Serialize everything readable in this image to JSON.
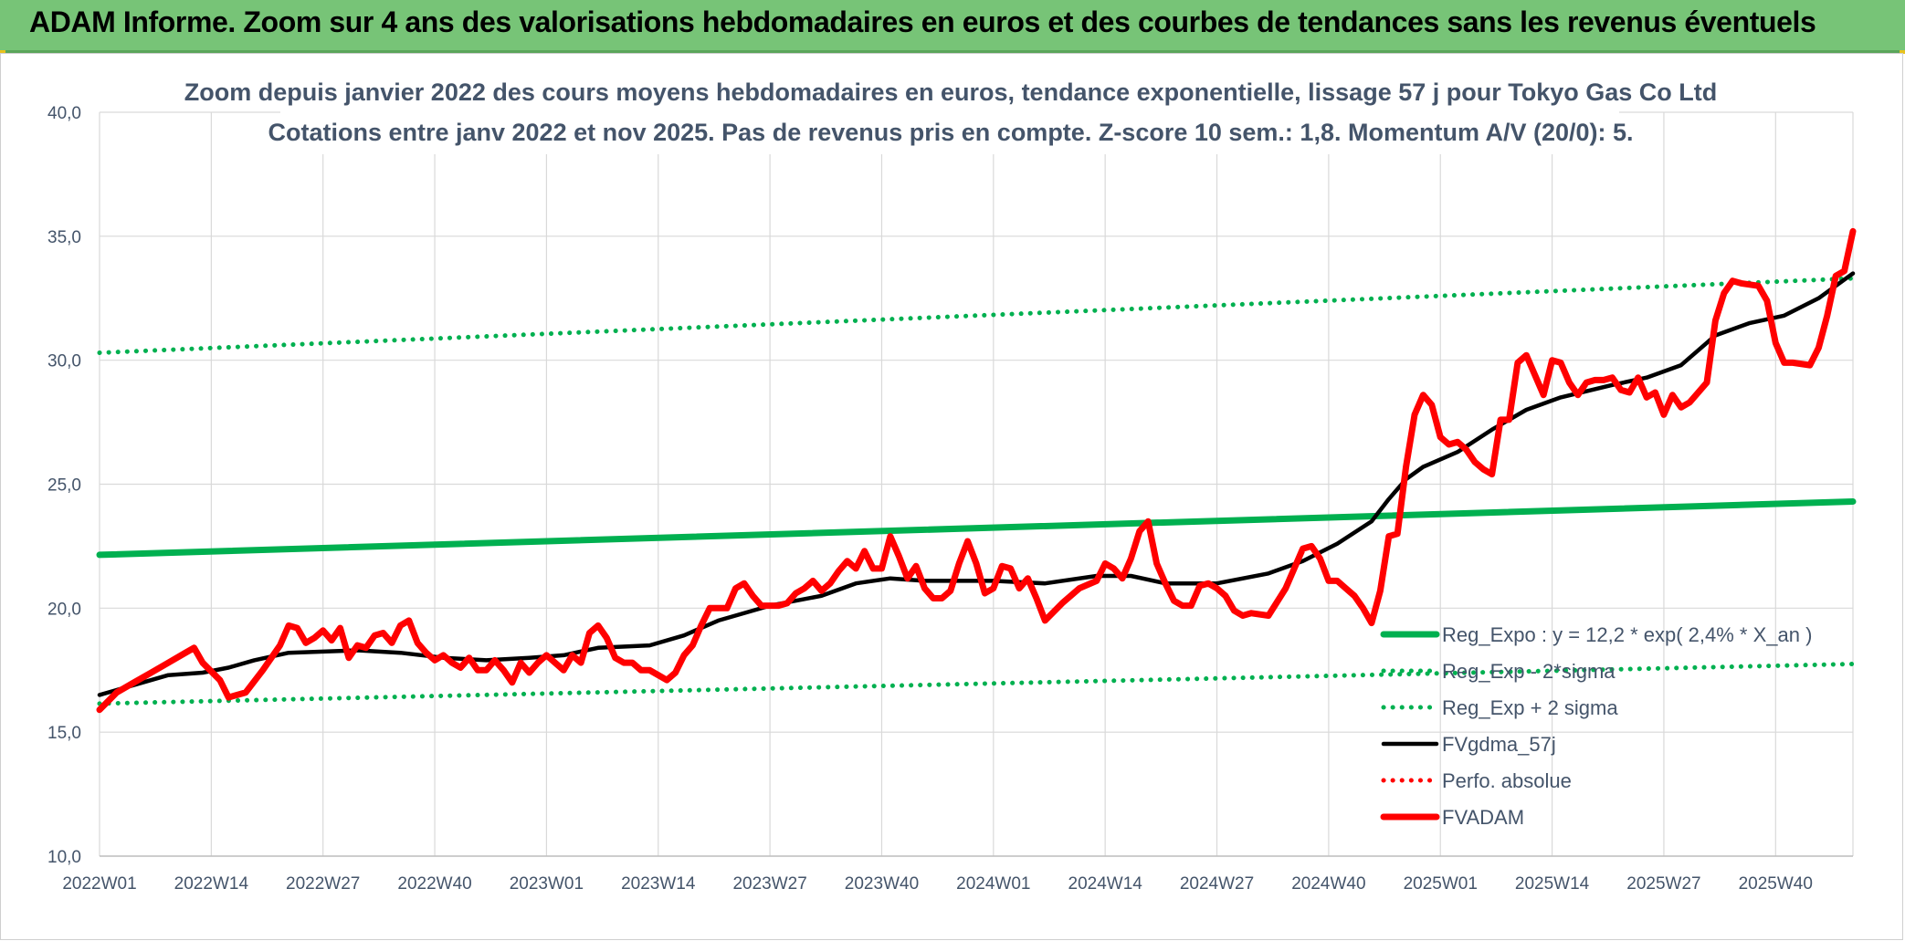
{
  "banner": {
    "title": "ADAM Informe. Zoom sur 4 ans des valorisations hebdomadaires en euros et des courbes de tendances sans les revenus éventuels"
  },
  "chart_data": {
    "type": "line",
    "title": "Zoom depuis janvier 2022 des cours moyens hebdomadaires en euros, tendance exponentielle, lissage 57 j pour Tokyo Gas Co Ltd",
    "subtitle": "Cotations entre janv 2022 et nov 2025. Pas de revenus pris en compte. Z-score 10 sem.: 1,8. Momentum A/V (20/0): 5.",
    "xlabel": "",
    "ylabel": "",
    "ylim": [
      10,
      40
    ],
    "yticks": [
      "10,0",
      "15,0",
      "20,0",
      "25,0",
      "30,0",
      "35,0",
      "40,0"
    ],
    "x_range_weeks": [
      0,
      204
    ],
    "xticks": [
      {
        "label": "2022W01",
        "week": 0
      },
      {
        "label": "2022W14",
        "week": 13
      },
      {
        "label": "2022W27",
        "week": 26
      },
      {
        "label": "2022W40",
        "week": 39
      },
      {
        "label": "2023W01",
        "week": 52
      },
      {
        "label": "2023W14",
        "week": 65
      },
      {
        "label": "2023W27",
        "week": 78
      },
      {
        "label": "2023W40",
        "week": 91
      },
      {
        "label": "2024W01",
        "week": 104
      },
      {
        "label": "2024W14",
        "week": 117
      },
      {
        "label": "2024W27",
        "week": 130
      },
      {
        "label": "2024W40",
        "week": 143
      },
      {
        "label": "2025W01",
        "week": 156
      },
      {
        "label": "2025W14",
        "week": 169
      },
      {
        "label": "2025W27",
        "week": 182
      },
      {
        "label": "2025W40",
        "week": 195
      }
    ],
    "grid": true,
    "legend_position": "bottom-right",
    "series": [
      {
        "name": "Reg_Expo : y = 12,2 * exp( 2,4% *  X_an )",
        "style": "solid-thick",
        "color": "#00b050",
        "points": [
          [
            0,
            22.15
          ],
          [
            204,
            24.3
          ]
        ]
      },
      {
        "name": "Reg_Exp - 2*sigma",
        "style": "dotted",
        "color": "#00b050",
        "points": [
          [
            0,
            16.15
          ],
          [
            204,
            17.75
          ]
        ]
      },
      {
        "name": "Reg_Exp + 2 sigma",
        "style": "dotted",
        "color": "#00b050",
        "points": [
          [
            0,
            30.3
          ],
          [
            204,
            33.3
          ]
        ]
      },
      {
        "name": "FVgdma_57j",
        "style": "solid",
        "color": "#000000",
        "points": [
          [
            0,
            16.5
          ],
          [
            4,
            16.9
          ],
          [
            8,
            17.3
          ],
          [
            12,
            17.4
          ],
          [
            15,
            17.6
          ],
          [
            18,
            17.9
          ],
          [
            22,
            18.2
          ],
          [
            30,
            18.3
          ],
          [
            35,
            18.2
          ],
          [
            40,
            18.0
          ],
          [
            45,
            17.9
          ],
          [
            50,
            18.0
          ],
          [
            54,
            18.1
          ],
          [
            58,
            18.4
          ],
          [
            64,
            18.5
          ],
          [
            68,
            18.9
          ],
          [
            72,
            19.5
          ],
          [
            78,
            20.1
          ],
          [
            84,
            20.5
          ],
          [
            88,
            21.0
          ],
          [
            92,
            21.2
          ],
          [
            96,
            21.1
          ],
          [
            104,
            21.1
          ],
          [
            110,
            21.0
          ],
          [
            116,
            21.3
          ],
          [
            120,
            21.3
          ],
          [
            124,
            21.0
          ],
          [
            130,
            21.0
          ],
          [
            136,
            21.4
          ],
          [
            140,
            21.9
          ],
          [
            144,
            22.6
          ],
          [
            148,
            23.5
          ],
          [
            150,
            24.4
          ],
          [
            152,
            25.2
          ],
          [
            154,
            25.7
          ],
          [
            158,
            26.3
          ],
          [
            162,
            27.2
          ],
          [
            166,
            28.0
          ],
          [
            170,
            28.5
          ],
          [
            176,
            29.0
          ],
          [
            180,
            29.3
          ],
          [
            184,
            29.8
          ],
          [
            188,
            31.0
          ],
          [
            192,
            31.5
          ],
          [
            196,
            31.8
          ],
          [
            200,
            32.5
          ],
          [
            204,
            33.5
          ]
        ]
      },
      {
        "name": "Perfo. absolue",
        "style": "dotted",
        "color": "#ff0000",
        "points": []
      },
      {
        "name": "FVADAM",
        "style": "solid-thick",
        "color": "#ff0000",
        "points": [
          [
            0,
            15.9
          ],
          [
            2,
            16.6
          ],
          [
            4,
            17.0
          ],
          [
            6,
            17.4
          ],
          [
            8,
            17.8
          ],
          [
            10,
            18.2
          ],
          [
            11,
            18.4
          ],
          [
            12,
            17.8
          ],
          [
            14,
            17.1
          ],
          [
            15,
            16.4
          ],
          [
            17,
            16.6
          ],
          [
            19,
            17.5
          ],
          [
            21,
            18.5
          ],
          [
            22,
            19.3
          ],
          [
            23,
            19.2
          ],
          [
            24,
            18.6
          ],
          [
            25,
            18.8
          ],
          [
            26,
            19.1
          ],
          [
            27,
            18.7
          ],
          [
            28,
            19.2
          ],
          [
            29,
            18.0
          ],
          [
            30,
            18.5
          ],
          [
            31,
            18.4
          ],
          [
            32,
            18.9
          ],
          [
            33,
            19.0
          ],
          [
            34,
            18.6
          ],
          [
            35,
            19.3
          ],
          [
            36,
            19.5
          ],
          [
            37,
            18.6
          ],
          [
            38,
            18.2
          ],
          [
            39,
            17.9
          ],
          [
            40,
            18.1
          ],
          [
            41,
            17.8
          ],
          [
            42,
            17.6
          ],
          [
            43,
            18.0
          ],
          [
            44,
            17.5
          ],
          [
            45,
            17.5
          ],
          [
            46,
            17.9
          ],
          [
            47,
            17.5
          ],
          [
            48,
            17.0
          ],
          [
            49,
            17.8
          ],
          [
            50,
            17.4
          ],
          [
            51,
            17.8
          ],
          [
            52,
            18.1
          ],
          [
            53,
            17.8
          ],
          [
            54,
            17.5
          ],
          [
            55,
            18.1
          ],
          [
            56,
            17.8
          ],
          [
            57,
            19.0
          ],
          [
            58,
            19.3
          ],
          [
            59,
            18.8
          ],
          [
            60,
            18.0
          ],
          [
            61,
            17.8
          ],
          [
            62,
            17.8
          ],
          [
            63,
            17.5
          ],
          [
            64,
            17.5
          ],
          [
            65,
            17.3
          ],
          [
            66,
            17.1
          ],
          [
            67,
            17.4
          ],
          [
            68,
            18.1
          ],
          [
            69,
            18.5
          ],
          [
            70,
            19.3
          ],
          [
            71,
            20.0
          ],
          [
            72,
            20.0
          ],
          [
            73,
            20.0
          ],
          [
            74,
            20.8
          ],
          [
            75,
            21.0
          ],
          [
            76,
            20.5
          ],
          [
            77,
            20.1
          ],
          [
            78,
            20.1
          ],
          [
            79,
            20.1
          ],
          [
            80,
            20.2
          ],
          [
            81,
            20.6
          ],
          [
            82,
            20.8
          ],
          [
            83,
            21.1
          ],
          [
            84,
            20.7
          ],
          [
            85,
            21.0
          ],
          [
            86,
            21.5
          ],
          [
            87,
            21.9
          ],
          [
            88,
            21.6
          ],
          [
            89,
            22.3
          ],
          [
            90,
            21.6
          ],
          [
            91,
            21.6
          ],
          [
            92,
            22.9
          ],
          [
            93,
            22.1
          ],
          [
            94,
            21.2
          ],
          [
            95,
            21.7
          ],
          [
            96,
            20.8
          ],
          [
            97,
            20.4
          ],
          [
            98,
            20.4
          ],
          [
            99,
            20.7
          ],
          [
            100,
            21.8
          ],
          [
            101,
            22.7
          ],
          [
            102,
            21.8
          ],
          [
            103,
            20.6
          ],
          [
            104,
            20.8
          ],
          [
            105,
            21.7
          ],
          [
            106,
            21.6
          ],
          [
            107,
            20.8
          ],
          [
            108,
            21.2
          ],
          [
            109,
            20.4
          ],
          [
            110,
            19.5
          ],
          [
            112,
            20.2
          ],
          [
            114,
            20.8
          ],
          [
            116,
            21.1
          ],
          [
            117,
            21.8
          ],
          [
            118,
            21.6
          ],
          [
            119,
            21.2
          ],
          [
            120,
            22.0
          ],
          [
            121,
            23.1
          ],
          [
            122,
            23.5
          ],
          [
            123,
            21.8
          ],
          [
            124,
            21.0
          ],
          [
            125,
            20.3
          ],
          [
            126,
            20.1
          ],
          [
            127,
            20.1
          ],
          [
            128,
            20.9
          ],
          [
            129,
            21.0
          ],
          [
            130,
            20.8
          ],
          [
            131,
            20.5
          ],
          [
            132,
            19.9
          ],
          [
            133,
            19.7
          ],
          [
            134,
            19.8
          ],
          [
            136,
            19.7
          ],
          [
            138,
            20.8
          ],
          [
            139,
            21.6
          ],
          [
            140,
            22.4
          ],
          [
            141,
            22.5
          ],
          [
            142,
            22.0
          ],
          [
            143,
            21.1
          ],
          [
            144,
            21.1
          ],
          [
            145,
            20.8
          ],
          [
            146,
            20.5
          ],
          [
            147,
            20.0
          ],
          [
            148,
            19.4
          ],
          [
            149,
            20.7
          ],
          [
            150,
            22.9
          ],
          [
            151,
            23.0
          ],
          [
            152,
            25.7
          ],
          [
            153,
            27.8
          ],
          [
            154,
            28.6
          ],
          [
            155,
            28.2
          ],
          [
            156,
            26.9
          ],
          [
            157,
            26.6
          ],
          [
            158,
            26.7
          ],
          [
            159,
            26.4
          ],
          [
            160,
            25.9
          ],
          [
            161,
            25.6
          ],
          [
            162,
            25.4
          ],
          [
            163,
            27.6
          ],
          [
            164,
            27.6
          ],
          [
            165,
            29.9
          ],
          [
            166,
            30.2
          ],
          [
            167,
            29.4
          ],
          [
            168,
            28.6
          ],
          [
            169,
            30.0
          ],
          [
            170,
            29.9
          ],
          [
            171,
            29.1
          ],
          [
            172,
            28.6
          ],
          [
            173,
            29.1
          ],
          [
            174,
            29.2
          ],
          [
            175,
            29.2
          ],
          [
            176,
            29.3
          ],
          [
            177,
            28.8
          ],
          [
            178,
            28.7
          ],
          [
            179,
            29.3
          ],
          [
            180,
            28.5
          ],
          [
            181,
            28.7
          ],
          [
            182,
            27.8
          ],
          [
            183,
            28.6
          ],
          [
            184,
            28.1
          ],
          [
            185,
            28.3
          ],
          [
            186,
            28.7
          ],
          [
            187,
            29.1
          ],
          [
            188,
            31.6
          ],
          [
            189,
            32.7
          ],
          [
            190,
            33.2
          ],
          [
            191,
            33.1
          ],
          [
            193,
            33.0
          ],
          [
            194,
            32.4
          ],
          [
            195,
            30.7
          ],
          [
            196,
            29.9
          ],
          [
            197,
            29.9
          ],
          [
            199,
            29.8
          ],
          [
            200,
            30.5
          ],
          [
            201,
            31.8
          ],
          [
            202,
            33.4
          ],
          [
            203,
            33.6
          ],
          [
            204,
            35.2
          ]
        ]
      }
    ]
  }
}
